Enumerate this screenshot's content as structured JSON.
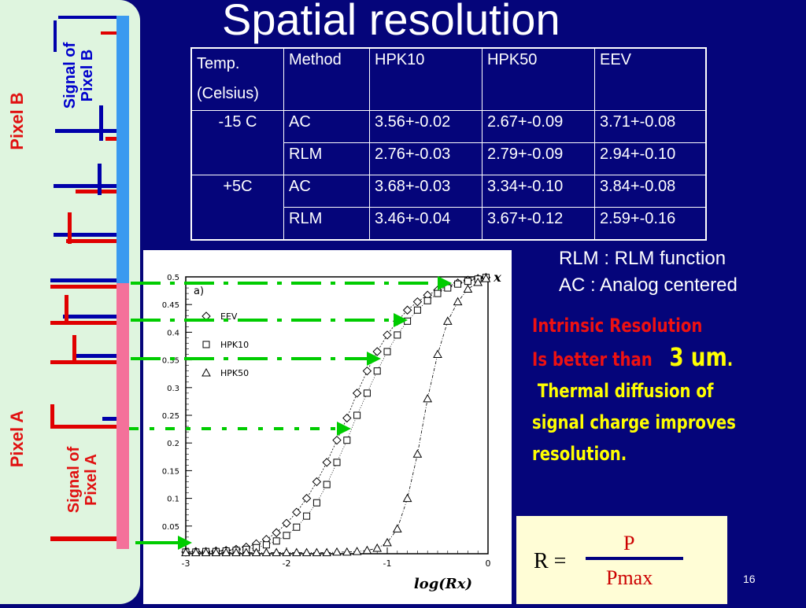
{
  "title": "Spatial resolution",
  "left_panel": {
    "pixel_b_label": "Pixel  B",
    "signal_b_label": [
      "Signal of",
      "Pixel B"
    ],
    "pixel_a_label": "Pixel  A",
    "signal_a_label": [
      "Signal of",
      "Pixel A"
    ]
  },
  "table": {
    "header": [
      "Temp.\n(Celsius)",
      "Method",
      "HPK10",
      "HPK50",
      "EEV"
    ],
    "rows": [
      {
        "temp": "-15 C",
        "method": "AC",
        "hpk10": "3.56+-0.02",
        "hpk50": "2.67+-0.09",
        "eev": "3.71+-0.08"
      },
      {
        "temp": "",
        "method": "RLM",
        "hpk10": "2.76+-0.03",
        "hpk50": "2.79+-0.09",
        "eev": "2.94+-0.10"
      },
      {
        "temp": "+5C",
        "method": "AC",
        "hpk10": "3.68+-0.03",
        "hpk50": "3.34+-0.10",
        "eev": "3.84+-0.08"
      },
      {
        "temp": "",
        "method": "RLM",
        "hpk10": "3.46+-0.04",
        "hpk50": "3.67+-0.12",
        "eev": "2.59+-0.16"
      }
    ]
  },
  "notes": {
    "rlm": "RLM : RLM function",
    "ac": "AC : Analog centered"
  },
  "highlight": {
    "line1": "Intrinsic Resolution",
    "line2": "Is better than",
    "line2_big": "3 um",
    "line2_dot": ".",
    "line3": " Thermal diffusion of",
    "line4": "signal charge improves",
    "line5": "resolution."
  },
  "formula": {
    "lhs": "R =",
    "numerator": "P",
    "denominator": "Pmax"
  },
  "page_number": "16",
  "colors": {
    "background": "#05057a",
    "panel": "#dff5df",
    "pixel_b": "#3a9af0",
    "pixel_a": "#f4719a",
    "signal_a_bar": "#e00000",
    "signal_b_bar": "#0000aa",
    "arrow": "#00cc00",
    "highlight_red": "#ee1111",
    "highlight_yellow": "#ffff00"
  },
  "chart_data": {
    "type": "scatter",
    "panel_label": "a)",
    "xlabel": "log(Rx)",
    "ylabel": "x",
    "xlim": [
      -3,
      0
    ],
    "ylim": [
      0,
      0.5
    ],
    "xticks": [
      "-3",
      "-2",
      "-1",
      "0"
    ],
    "yticks": [
      "0.05",
      "0.1",
      "0.15",
      "0.2",
      "0.25",
      "0.3",
      "0.35",
      "0.4",
      "0.45",
      "0.5"
    ],
    "legend": [
      {
        "name": "EEV",
        "marker": "diamond"
      },
      {
        "name": "HPK10",
        "marker": "square"
      },
      {
        "name": "HPK50",
        "marker": "triangle"
      }
    ],
    "legend_position": "top-left",
    "series": [
      {
        "name": "EEV",
        "marker": "diamond",
        "points": [
          [
            -3,
            0.003
          ],
          [
            -2.9,
            0.004
          ],
          [
            -2.8,
            0.004
          ],
          [
            -2.7,
            0.005
          ],
          [
            -2.6,
            0.006
          ],
          [
            -2.5,
            0.008
          ],
          [
            -2.4,
            0.012
          ],
          [
            -2.3,
            0.018
          ],
          [
            -2.2,
            0.026
          ],
          [
            -2.1,
            0.038
          ],
          [
            -2.0,
            0.055
          ],
          [
            -1.9,
            0.075
          ],
          [
            -1.8,
            0.1
          ],
          [
            -1.7,
            0.13
          ],
          [
            -1.6,
            0.165
          ],
          [
            -1.5,
            0.205
          ],
          [
            -1.4,
            0.245
          ],
          [
            -1.3,
            0.29
          ],
          [
            -1.2,
            0.33
          ],
          [
            -1.1,
            0.365
          ],
          [
            -1.0,
            0.395
          ],
          [
            -0.9,
            0.42
          ],
          [
            -0.8,
            0.44
          ],
          [
            -0.7,
            0.455
          ],
          [
            -0.6,
            0.467
          ],
          [
            -0.5,
            0.476
          ],
          [
            -0.4,
            0.483
          ],
          [
            -0.3,
            0.489
          ],
          [
            -0.2,
            0.494
          ],
          [
            -0.1,
            0.497
          ],
          [
            -0.02,
            0.499
          ]
        ]
      },
      {
        "name": "HPK10",
        "marker": "square",
        "points": [
          [
            -3,
            0.003
          ],
          [
            -2.9,
            0.003
          ],
          [
            -2.8,
            0.004
          ],
          [
            -2.7,
            0.004
          ],
          [
            -2.6,
            0.005
          ],
          [
            -2.5,
            0.006
          ],
          [
            -2.4,
            0.008
          ],
          [
            -2.3,
            0.011
          ],
          [
            -2.2,
            0.016
          ],
          [
            -2.1,
            0.023
          ],
          [
            -2.0,
            0.033
          ],
          [
            -1.9,
            0.048
          ],
          [
            -1.8,
            0.068
          ],
          [
            -1.7,
            0.092
          ],
          [
            -1.6,
            0.125
          ],
          [
            -1.5,
            0.165
          ],
          [
            -1.4,
            0.205
          ],
          [
            -1.3,
            0.25
          ],
          [
            -1.2,
            0.29
          ],
          [
            -1.1,
            0.33
          ],
          [
            -1.0,
            0.365
          ],
          [
            -0.9,
            0.395
          ],
          [
            -0.8,
            0.42
          ],
          [
            -0.7,
            0.44
          ],
          [
            -0.6,
            0.457
          ],
          [
            -0.5,
            0.47
          ],
          [
            -0.4,
            0.48
          ],
          [
            -0.3,
            0.487
          ],
          [
            -0.2,
            0.492
          ],
          [
            -0.1,
            0.496
          ],
          [
            -0.02,
            0.499
          ]
        ]
      },
      {
        "name": "HPK50",
        "marker": "triangle",
        "points": [
          [
            -3,
            0.002
          ],
          [
            -2.9,
            0.002
          ],
          [
            -2.8,
            0.002
          ],
          [
            -2.7,
            0.002
          ],
          [
            -2.6,
            0.002
          ],
          [
            -2.5,
            0.002
          ],
          [
            -2.4,
            0.002
          ],
          [
            -2.3,
            0.002
          ],
          [
            -2.2,
            0.002
          ],
          [
            -2.1,
            0.002
          ],
          [
            -2.0,
            0.002
          ],
          [
            -1.9,
            0.002
          ],
          [
            -1.8,
            0.002
          ],
          [
            -1.7,
            0.002
          ],
          [
            -1.6,
            0.002
          ],
          [
            -1.5,
            0.003
          ],
          [
            -1.4,
            0.003
          ],
          [
            -1.3,
            0.004
          ],
          [
            -1.2,
            0.006
          ],
          [
            -1.1,
            0.01
          ],
          [
            -1.0,
            0.02
          ],
          [
            -0.9,
            0.045
          ],
          [
            -0.8,
            0.1
          ],
          [
            -0.7,
            0.18
          ],
          [
            -0.6,
            0.28
          ],
          [
            -0.5,
            0.36
          ],
          [
            -0.4,
            0.42
          ],
          [
            -0.3,
            0.455
          ],
          [
            -0.2,
            0.478
          ],
          [
            -0.1,
            0.49
          ],
          [
            -0.02,
            0.497
          ]
        ]
      }
    ]
  }
}
